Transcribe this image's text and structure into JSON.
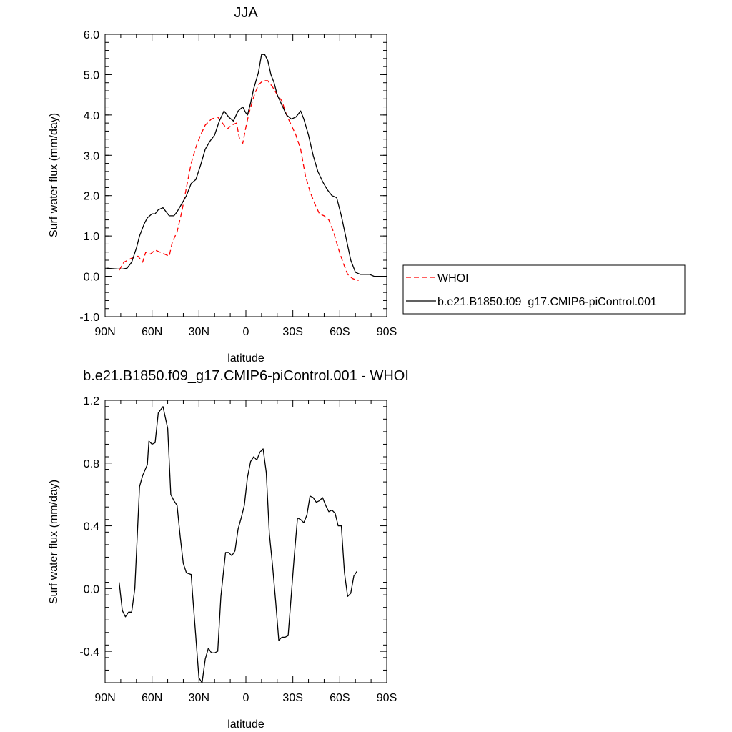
{
  "chart_data": [
    {
      "type": "line",
      "title": "JJA",
      "xlabel": "latitude",
      "ylabel": "Surf water flux (mm/day)",
      "xlim": [
        90,
        -90
      ],
      "ylim": [
        -1.0,
        6.0
      ],
      "x_ticks": [
        90,
        60,
        30,
        0,
        -30,
        -60,
        -90
      ],
      "x_tick_labels": [
        "90N",
        "60N",
        "30N",
        "0",
        "30S",
        "60S",
        "90S"
      ],
      "y_ticks": [
        -1.0,
        0.0,
        1.0,
        2.0,
        3.0,
        4.0,
        5.0,
        6.0
      ],
      "y_tick_labels": [
        "-1.0",
        "0.0",
        "1.0",
        "2.0",
        "3.0",
        "4.0",
        "5.0",
        "6.0"
      ],
      "grid": false,
      "legend": "right",
      "series": [
        {
          "name": "WHOI",
          "color": "#ff0000",
          "dash": true,
          "x": [
            81,
            78,
            73,
            69,
            66,
            64,
            61,
            58,
            55,
            52,
            49,
            47,
            44,
            41,
            38,
            35,
            32,
            29,
            26,
            22,
            18,
            15,
            12,
            9,
            6,
            4,
            2,
            0,
            -2,
            -5,
            -8,
            -11,
            -14,
            -17,
            -20,
            -23,
            -26,
            -29,
            -32,
            -35,
            -38,
            -41,
            -44,
            -47,
            -50,
            -53,
            -56,
            -59,
            -62,
            -65,
            -68,
            -71,
            -72
          ],
          "y": [
            0.15,
            0.35,
            0.45,
            0.5,
            0.35,
            0.6,
            0.55,
            0.65,
            0.6,
            0.55,
            0.5,
            0.85,
            1.1,
            1.6,
            2.2,
            2.8,
            3.2,
            3.5,
            3.75,
            3.9,
            3.95,
            3.8,
            3.65,
            3.75,
            3.8,
            3.4,
            3.3,
            3.7,
            4.05,
            4.45,
            4.75,
            4.85,
            4.85,
            4.7,
            4.5,
            4.35,
            4.0,
            3.75,
            3.5,
            3.15,
            2.5,
            2.1,
            1.8,
            1.55,
            1.5,
            1.4,
            1.1,
            0.7,
            0.35,
            0.05,
            -0.05,
            -0.1,
            -0.1
          ]
        },
        {
          "name": "b.e21.B1850.f09_g17.CMIP6-piControl.001",
          "color": "#000000",
          "dash": false,
          "x": [
            89,
            82,
            79,
            76,
            73,
            70,
            68,
            65,
            63,
            60,
            58,
            56,
            53,
            51,
            49,
            46,
            44,
            41,
            38,
            35,
            32,
            29,
            26,
            23,
            20,
            17,
            14,
            11,
            8,
            5,
            2,
            0,
            -1,
            -3,
            -5,
            -8,
            -10,
            -12,
            -14,
            -16,
            -18,
            -20,
            -23,
            -26,
            -29,
            -32,
            -35,
            -37,
            -40,
            -43,
            -46,
            -49,
            -52,
            -55,
            -58,
            -61,
            -64,
            -67,
            -70,
            -73,
            -76,
            -79,
            -82,
            -85,
            -90
          ],
          "y": [
            0.2,
            0.18,
            0.18,
            0.2,
            0.35,
            0.7,
            1.0,
            1.3,
            1.45,
            1.55,
            1.55,
            1.65,
            1.7,
            1.6,
            1.5,
            1.5,
            1.6,
            1.8,
            2.0,
            2.3,
            2.4,
            2.75,
            3.15,
            3.35,
            3.5,
            3.85,
            4.1,
            3.95,
            3.85,
            4.1,
            4.2,
            4.05,
            4.0,
            4.3,
            4.65,
            5.05,
            5.5,
            5.5,
            5.35,
            5.0,
            4.8,
            4.5,
            4.25,
            4.0,
            3.9,
            3.95,
            4.1,
            3.9,
            3.5,
            3.0,
            2.6,
            2.35,
            2.15,
            2.0,
            1.95,
            1.5,
            0.95,
            0.4,
            0.1,
            0.05,
            0.05,
            0.05,
            0.0,
            0.0,
            0.0
          ]
        }
      ]
    },
    {
      "type": "line",
      "title": "b.e21.B1850.f09_g17.CMIP6-piControl.001 - WHOI",
      "xlabel": "latitude",
      "ylabel": "Surf water flux (mm/day)",
      "xlim": [
        90,
        -90
      ],
      "ylim": [
        -0.6,
        1.2
      ],
      "x_ticks": [
        90,
        60,
        30,
        0,
        -30,
        -60,
        -90
      ],
      "x_tick_labels": [
        "90N",
        "60N",
        "30N",
        "0",
        "30S",
        "60S",
        "90S"
      ],
      "y_ticks": [
        -0.4,
        0.0,
        0.4,
        0.8,
        1.2
      ],
      "y_tick_labels": [
        "-0.4",
        "0.0",
        "0.4",
        "0.8",
        "1.2"
      ],
      "grid": false,
      "series": [
        {
          "name": "",
          "color": "#000000",
          "dash": false,
          "x": [
            81,
            79,
            77,
            75,
            73,
            71,
            68,
            66,
            63,
            62,
            60,
            58,
            56,
            53,
            50,
            48,
            46,
            44,
            42,
            40,
            38,
            35,
            34,
            30,
            28,
            26,
            24,
            22,
            20,
            18,
            16,
            13,
            11,
            9,
            7,
            5,
            3,
            1,
            -1,
            -3,
            -5,
            -7,
            -9,
            -11,
            -13,
            -15,
            -17,
            -19,
            -21,
            -23,
            -25,
            -27,
            -29,
            -31,
            -33,
            -35,
            -37,
            -39,
            -41,
            -43,
            -45,
            -47,
            -49,
            -51,
            -53,
            -55,
            -57,
            -59,
            -61,
            -63,
            -65,
            -67,
            -69,
            -71
          ],
          "y": [
            0.04,
            -0.14,
            -0.18,
            -0.15,
            -0.15,
            0.0,
            0.65,
            0.72,
            0.79,
            0.94,
            0.92,
            0.93,
            1.12,
            1.16,
            1.02,
            0.6,
            0.56,
            0.53,
            0.33,
            0.16,
            0.1,
            0.09,
            -0.05,
            -0.57,
            -0.6,
            -0.45,
            -0.38,
            -0.41,
            -0.41,
            -0.4,
            -0.05,
            0.23,
            0.23,
            0.21,
            0.24,
            0.38,
            0.45,
            0.53,
            0.71,
            0.81,
            0.84,
            0.82,
            0.87,
            0.89,
            0.74,
            0.35,
            0.15,
            -0.08,
            -0.33,
            -0.31,
            -0.31,
            -0.3,
            -0.04,
            0.22,
            0.45,
            0.44,
            0.42,
            0.47,
            0.59,
            0.58,
            0.55,
            0.56,
            0.58,
            0.53,
            0.49,
            0.5,
            0.48,
            0.4,
            0.4,
            0.1,
            -0.05,
            -0.03,
            0.08,
            0.11
          ]
        }
      ]
    }
  ]
}
